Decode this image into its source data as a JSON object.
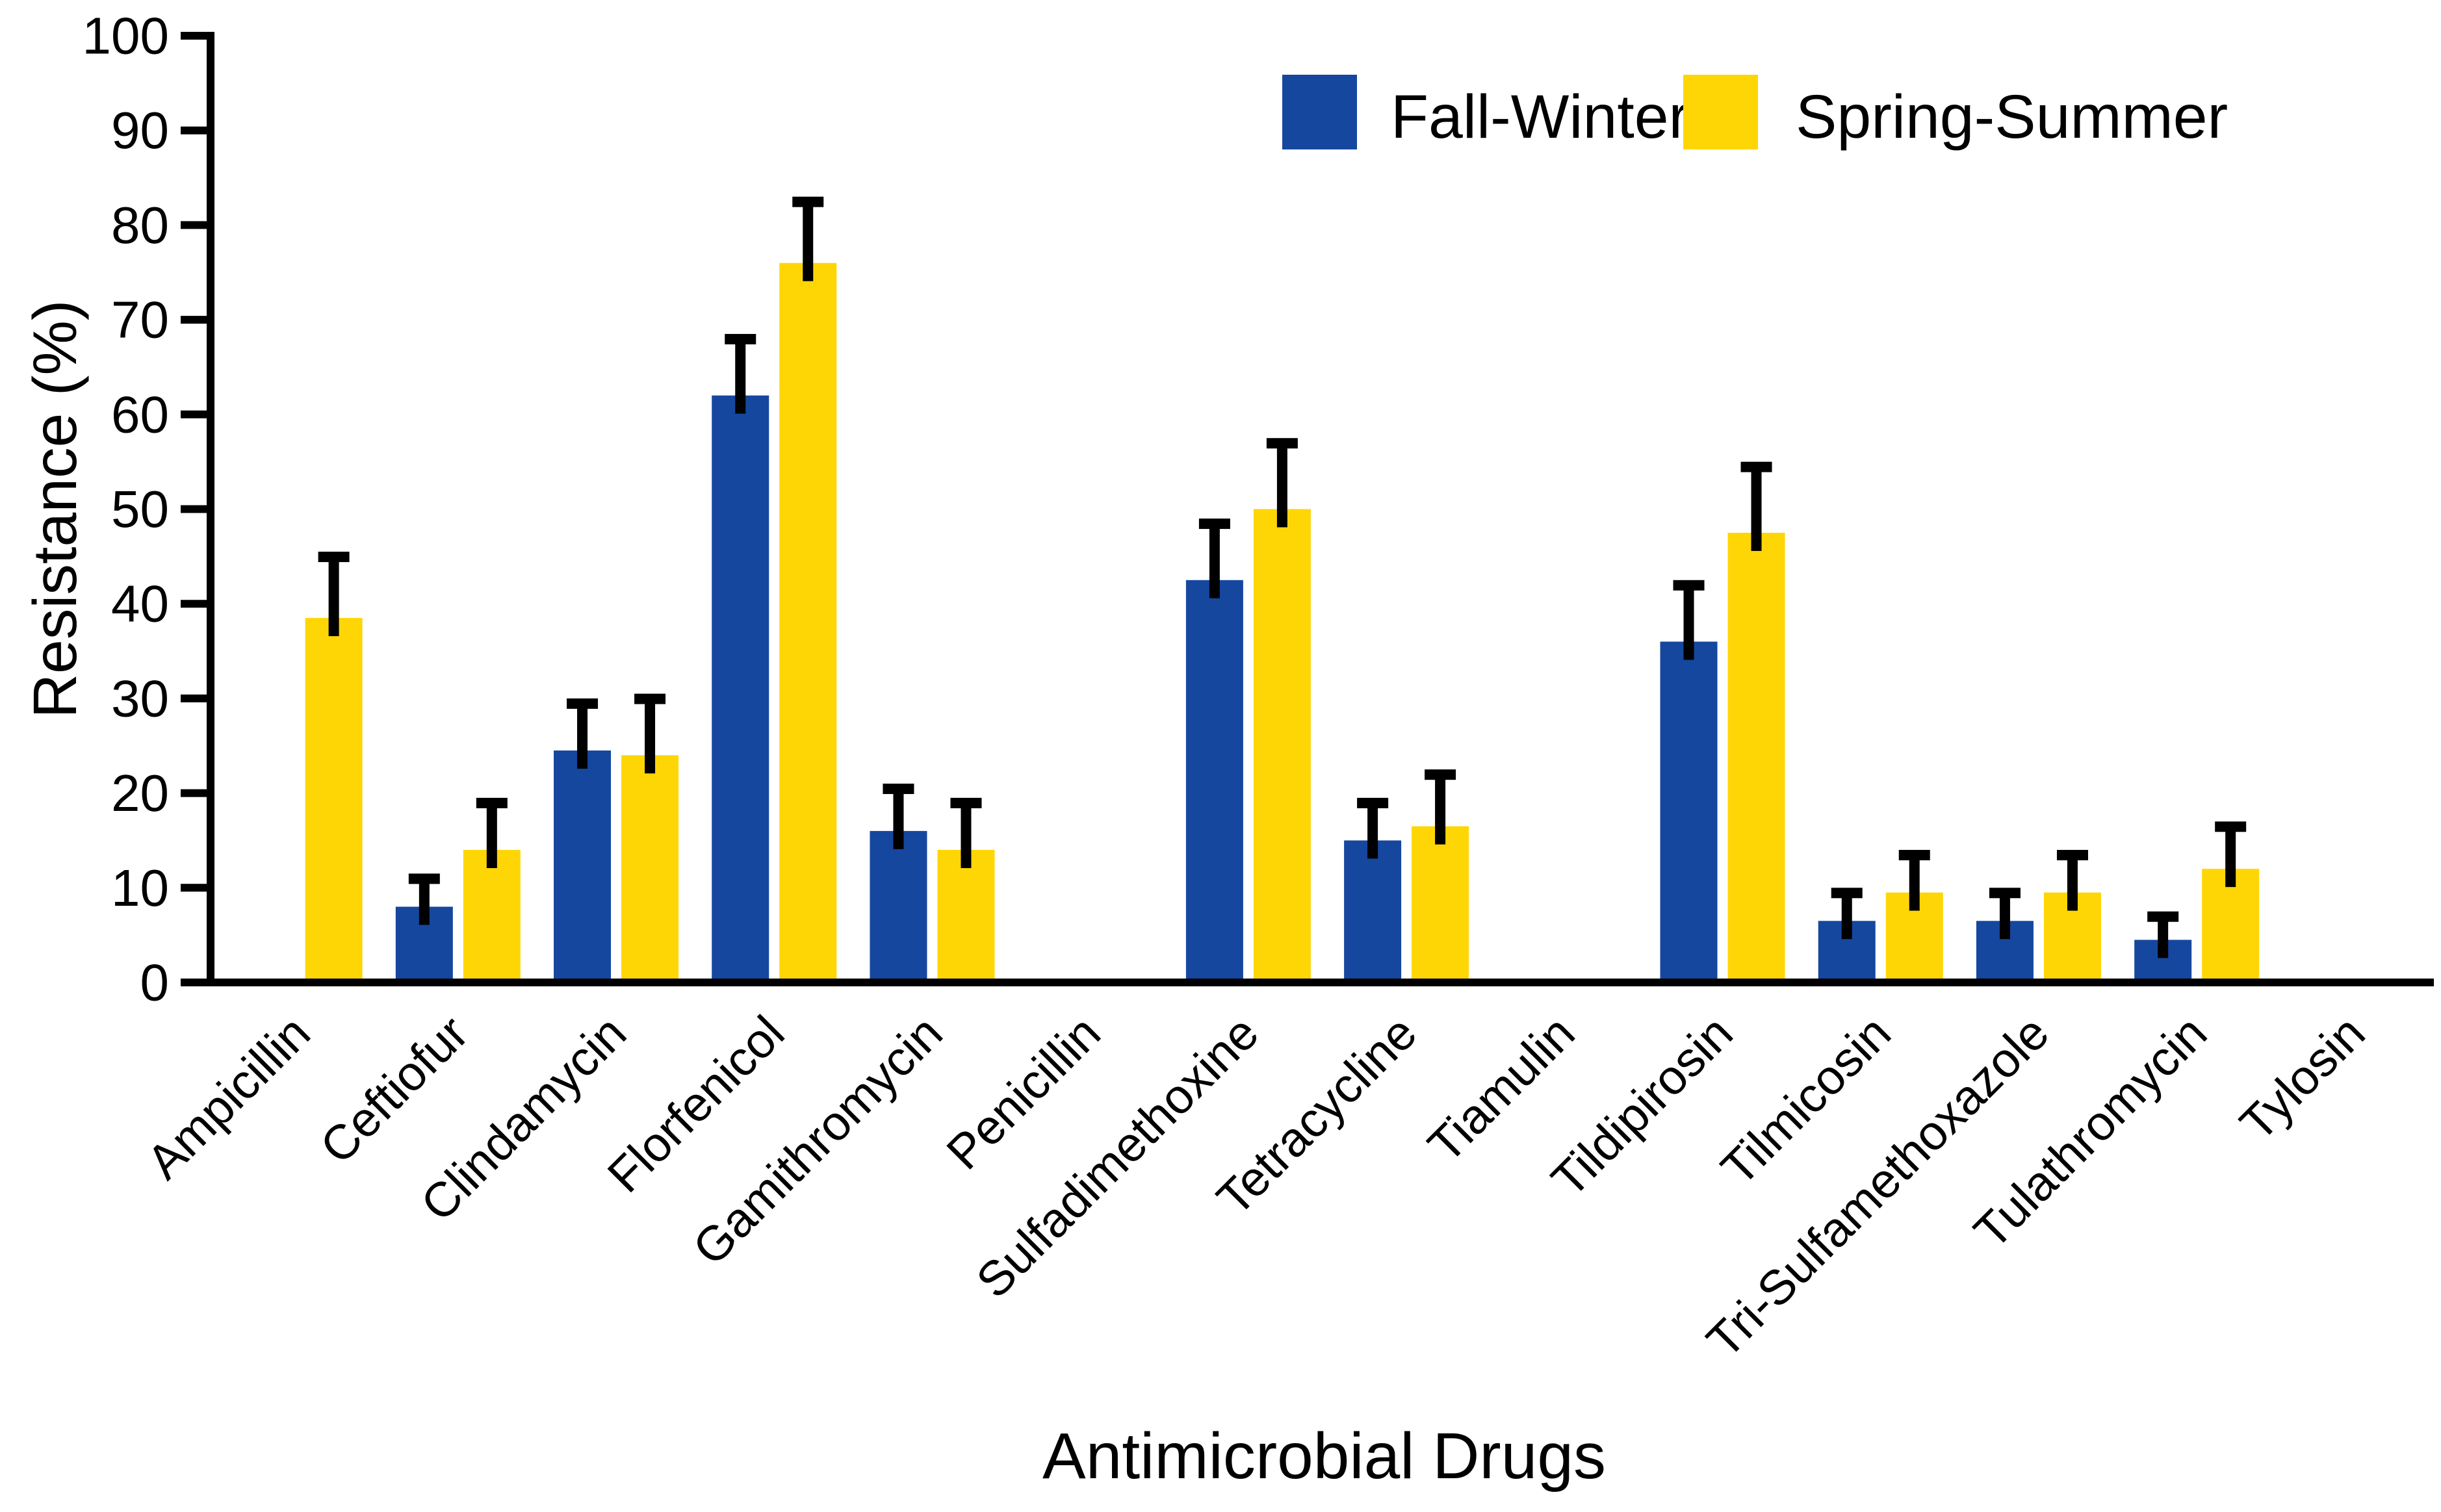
{
  "figure": {
    "background": "#ffffff",
    "y_axis_title": "Resistance (%)",
    "x_axis_title": "Antimicrobial Drugs"
  },
  "legend": {
    "position": "top-right-inside",
    "items": [
      {
        "label": "Fall-Winter",
        "color": "#15479F"
      },
      {
        "label": "Spring-Summer",
        "color": "#FFD605"
      }
    ]
  },
  "colors": {
    "axis": "#000000",
    "error_bar": "#000000",
    "tick_text": "#000000",
    "fall_winter": "#15479F",
    "spring_summer": "#FFD605"
  },
  "chart_data": {
    "type": "bar",
    "title": "",
    "xlabel": "Antimicrobial Drugs",
    "ylabel": "Resistance (%)",
    "ylim": [
      0,
      100
    ],
    "ytick_step": 10,
    "ytick_labels": [
      "0",
      "10",
      "20",
      "30",
      "40",
      "50",
      "60",
      "70",
      "80",
      "90",
      "100"
    ],
    "grid": false,
    "legend_position": "top-right-inside",
    "error_bars": "upper-only",
    "bar_orientation": "vertical",
    "categories": [
      "Ampicillin",
      "Ceftiofur",
      "Clindamycin",
      "Florfenicol",
      "Gamithromycin",
      "Penicillin",
      "Sulfadimethoxine",
      "Tetracycline",
      "Tiamulin",
      "Tildipirosin",
      "Tilmicosin",
      "Tri-Sulfamethoxazole",
      "Tulathromycin",
      "Tylosin"
    ],
    "series": [
      {
        "name": "Fall-Winter",
        "color": "#15479F",
        "values": [
          0,
          8,
          24.5,
          62,
          16,
          0,
          42.5,
          15,
          0,
          36,
          6.5,
          6.5,
          4.5,
          0
        ],
        "upper_errors": [
          0,
          3.5,
          5.5,
          6.5,
          5,
          0,
          6.5,
          4.5,
          0,
          6.5,
          3.5,
          3.5,
          3,
          0
        ]
      },
      {
        "name": "Spring-Summer",
        "color": "#FFD605",
        "values": [
          38.5,
          14,
          24,
          76,
          14,
          0,
          50,
          16.5,
          0,
          47.5,
          9.5,
          9.5,
          12,
          0
        ],
        "upper_errors": [
          7,
          5.5,
          6.5,
          7,
          5.5,
          0,
          7.5,
          6,
          0,
          7.5,
          4.5,
          4.5,
          5,
          0
        ]
      }
    ]
  }
}
